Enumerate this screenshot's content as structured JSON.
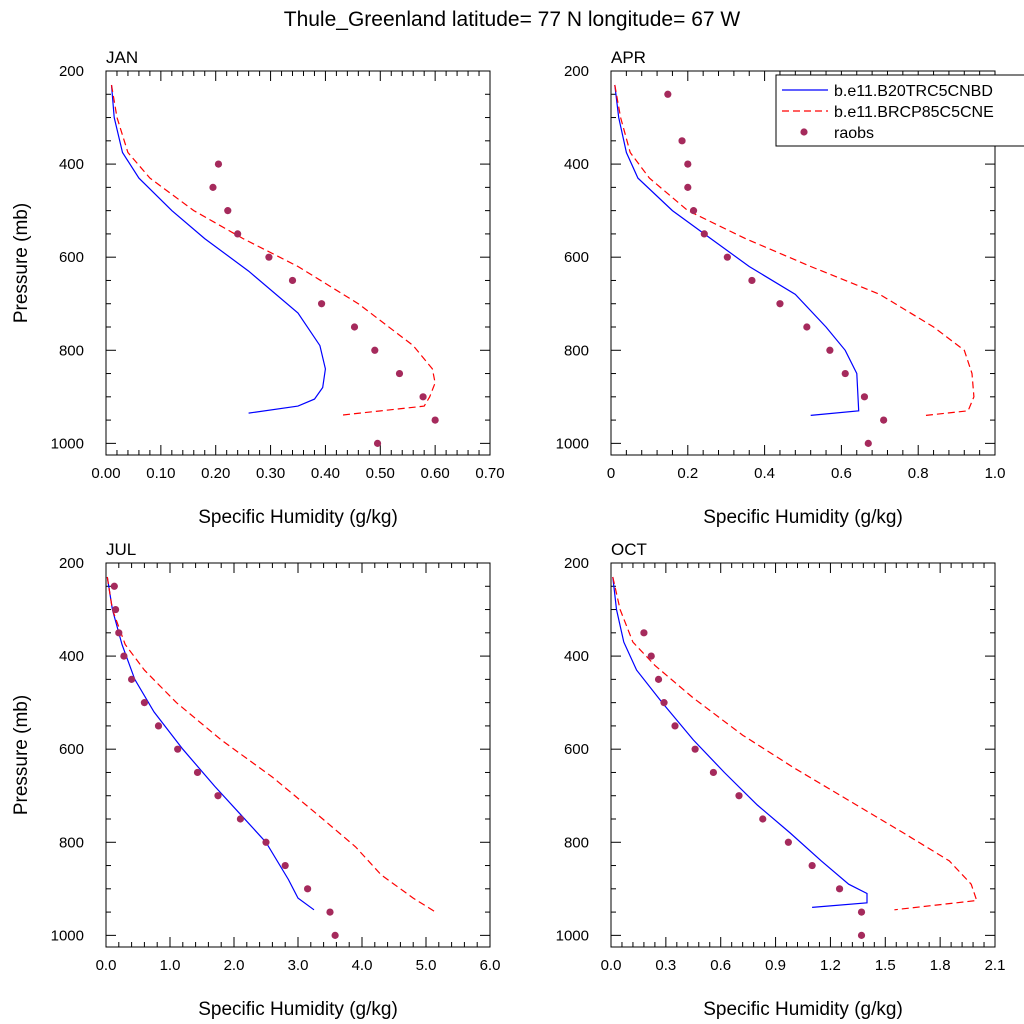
{
  "suptitle": "Thule_Greenland  latitude= 77 N longitude= 67 W",
  "legend": {
    "entries": [
      {
        "label": "b.e11.B20TRC5CNBD",
        "style": "solid",
        "color": "#0000ff"
      },
      {
        "label": "b.e11.BRCP85C5CNE",
        "style": "dashed",
        "color": "#ff0000"
      },
      {
        "label": "raobs",
        "style": "dot",
        "color": "#a52a5c"
      }
    ]
  },
  "colors": {
    "model1": "#0000ff",
    "model2": "#ff0000",
    "obs": "#a52a5c"
  },
  "chart_data": [
    {
      "type": "line",
      "title": "JAN",
      "xlabel": "Specific Humidity (g/kg)",
      "ylabel": "Pressure (mb)",
      "xlim": [
        0,
        0.7
      ],
      "ylim": [
        200,
        1025
      ],
      "y_inverted": true,
      "xticks": [
        "0.00",
        "0.10",
        "0.20",
        "0.30",
        "0.40",
        "0.50",
        "0.60",
        "0.70"
      ],
      "xtick_values": [
        0,
        0.1,
        0.2,
        0.3,
        0.4,
        0.5,
        0.6,
        0.7
      ],
      "yticks": [
        "200",
        "400",
        "600",
        "800",
        "1000"
      ],
      "series": [
        {
          "name": "b.e11.B20TRC5CNBD",
          "kind": "line",
          "x": [
            0.01,
            0.015,
            0.03,
            0.06,
            0.12,
            0.18,
            0.26,
            0.35,
            0.39,
            0.4,
            0.395,
            0.38,
            0.35,
            0.26
          ],
          "y": [
            230,
            300,
            375,
            430,
            500,
            560,
            630,
            720,
            790,
            840,
            880,
            905,
            920,
            935
          ]
        },
        {
          "name": "b.e11.BRCP85C5CNE",
          "kind": "dashed",
          "x": [
            0.01,
            0.02,
            0.04,
            0.08,
            0.16,
            0.25,
            0.35,
            0.46,
            0.56,
            0.595,
            0.6,
            0.59,
            0.58,
            0.425
          ],
          "y": [
            230,
            300,
            375,
            430,
            500,
            560,
            620,
            700,
            790,
            840,
            870,
            900,
            920,
            940
          ]
        },
        {
          "name": "raobs",
          "kind": "points",
          "x": [
            0.205,
            0.195,
            0.222,
            0.24,
            0.297,
            0.34,
            0.393,
            0.453,
            0.49,
            0.535,
            0.578,
            0.6,
            0.495
          ],
          "y": [
            400,
            450,
            500,
            550,
            600,
            650,
            700,
            750,
            800,
            850,
            900,
            950,
            1000
          ]
        }
      ]
    },
    {
      "type": "line",
      "title": "APR",
      "xlabel": "Specific Humidity (g/kg)",
      "ylabel": "",
      "xlim": [
        0,
        1.0
      ],
      "ylim": [
        200,
        1025
      ],
      "y_inverted": true,
      "xticks": [
        "0",
        "0.2",
        "0.4",
        "0.6",
        "0.8",
        "1.0"
      ],
      "xtick_values": [
        0,
        0.2,
        0.4,
        0.6,
        0.8,
        1.0
      ],
      "yticks": [
        "200",
        "400",
        "600",
        "800",
        "1000"
      ],
      "series": [
        {
          "name": "b.e11.B20TRC5CNBD",
          "kind": "line",
          "x": [
            0.01,
            0.02,
            0.04,
            0.07,
            0.16,
            0.26,
            0.36,
            0.48,
            0.56,
            0.61,
            0.64,
            0.645,
            0.52
          ],
          "y": [
            230,
            300,
            375,
            430,
            500,
            560,
            620,
            680,
            750,
            800,
            850,
            930,
            940
          ]
        },
        {
          "name": "b.e11.BRCP85C5CNE",
          "kind": "dashed",
          "x": [
            0.01,
            0.025,
            0.05,
            0.1,
            0.2,
            0.35,
            0.52,
            0.7,
            0.84,
            0.92,
            0.94,
            0.945,
            0.93,
            0.82
          ],
          "y": [
            230,
            300,
            375,
            430,
            500,
            560,
            620,
            680,
            750,
            800,
            850,
            900,
            930,
            940
          ]
        },
        {
          "name": "raobs",
          "kind": "points",
          "x": [
            0.148,
            0.185,
            0.2,
            0.2,
            0.215,
            0.243,
            0.303,
            0.367,
            0.44,
            0.51,
            0.57,
            0.61,
            0.66,
            0.71,
            0.67
          ],
          "y": [
            250,
            350,
            400,
            450,
            500,
            550,
            600,
            650,
            700,
            750,
            800,
            850,
            900,
            950,
            1000
          ]
        }
      ]
    },
    {
      "type": "line",
      "title": "JUL",
      "xlabel": "Specific Humidity (g/kg)",
      "ylabel": "Pressure (mb)",
      "xlim": [
        0,
        6.0
      ],
      "ylim": [
        200,
        1025
      ],
      "y_inverted": true,
      "xticks": [
        "0.0",
        "1.0",
        "2.0",
        "3.0",
        "4.0",
        "5.0",
        "6.0"
      ],
      "xtick_values": [
        0,
        1,
        2,
        3,
        4,
        5,
        6
      ],
      "yticks": [
        "200",
        "400",
        "600",
        "800",
        "1000"
      ],
      "series": [
        {
          "name": "b.e11.B20TRC5CNBD",
          "kind": "line",
          "x": [
            0.02,
            0.1,
            0.25,
            0.45,
            0.75,
            1.2,
            1.7,
            2.1,
            2.5,
            2.85,
            3.0,
            3.25
          ],
          "y": [
            230,
            300,
            375,
            450,
            520,
            600,
            680,
            740,
            800,
            880,
            920,
            945
          ]
        },
        {
          "name": "b.e11.BRCP85C5CNE",
          "kind": "dashed",
          "x": [
            0.02,
            0.1,
            0.3,
            0.6,
            1.1,
            1.8,
            2.6,
            3.3,
            3.9,
            4.3,
            4.8,
            5.15
          ],
          "y": [
            230,
            300,
            375,
            430,
            500,
            580,
            660,
            740,
            810,
            870,
            920,
            950
          ]
        },
        {
          "name": "raobs",
          "kind": "points",
          "x": [
            0.13,
            0.15,
            0.2,
            0.28,
            0.4,
            0.6,
            0.82,
            1.12,
            1.43,
            1.75,
            2.1,
            2.5,
            2.8,
            3.15,
            3.5,
            3.58
          ],
          "y": [
            250,
            300,
            350,
            400,
            450,
            500,
            550,
            600,
            650,
            700,
            750,
            800,
            850,
            900,
            950,
            1000
          ]
        }
      ]
    },
    {
      "type": "line",
      "title": "OCT",
      "xlabel": "Specific Humidity (g/kg)",
      "ylabel": "",
      "xlim": [
        0,
        2.1
      ],
      "ylim": [
        200,
        1025
      ],
      "y_inverted": true,
      "xticks": [
        "0.0",
        "0.3",
        "0.6",
        "0.9",
        "1.2",
        "1.5",
        "1.8",
        "2.1"
      ],
      "xtick_values": [
        0,
        0.3,
        0.6,
        0.9,
        1.2,
        1.5,
        1.8,
        2.1
      ],
      "yticks": [
        "200",
        "400",
        "600",
        "800",
        "1000"
      ],
      "series": [
        {
          "name": "b.e11.B20TRC5CNBD",
          "kind": "line",
          "x": [
            0.01,
            0.03,
            0.07,
            0.14,
            0.28,
            0.45,
            0.62,
            0.8,
            0.98,
            1.15,
            1.3,
            1.4,
            1.4,
            1.1
          ],
          "y": [
            230,
            300,
            370,
            430,
            500,
            580,
            650,
            720,
            780,
            840,
            890,
            910,
            930,
            940
          ]
        },
        {
          "name": "b.e11.BRCP85C5CNE",
          "kind": "dashed",
          "x": [
            0.01,
            0.05,
            0.12,
            0.24,
            0.45,
            0.72,
            1.0,
            1.3,
            1.6,
            1.85,
            1.97,
            2.0,
            1.55
          ],
          "y": [
            230,
            300,
            370,
            420,
            490,
            570,
            640,
            710,
            780,
            840,
            890,
            925,
            945
          ]
        },
        {
          "name": "raobs",
          "kind": "points",
          "x": [
            0.18,
            0.22,
            0.26,
            0.29,
            0.35,
            0.46,
            0.56,
            0.7,
            0.83,
            0.97,
            1.1,
            1.25,
            1.37,
            1.37
          ],
          "y": [
            350,
            400,
            450,
            500,
            550,
            600,
            650,
            700,
            750,
            800,
            850,
            900,
            950,
            1000
          ]
        }
      ]
    }
  ]
}
